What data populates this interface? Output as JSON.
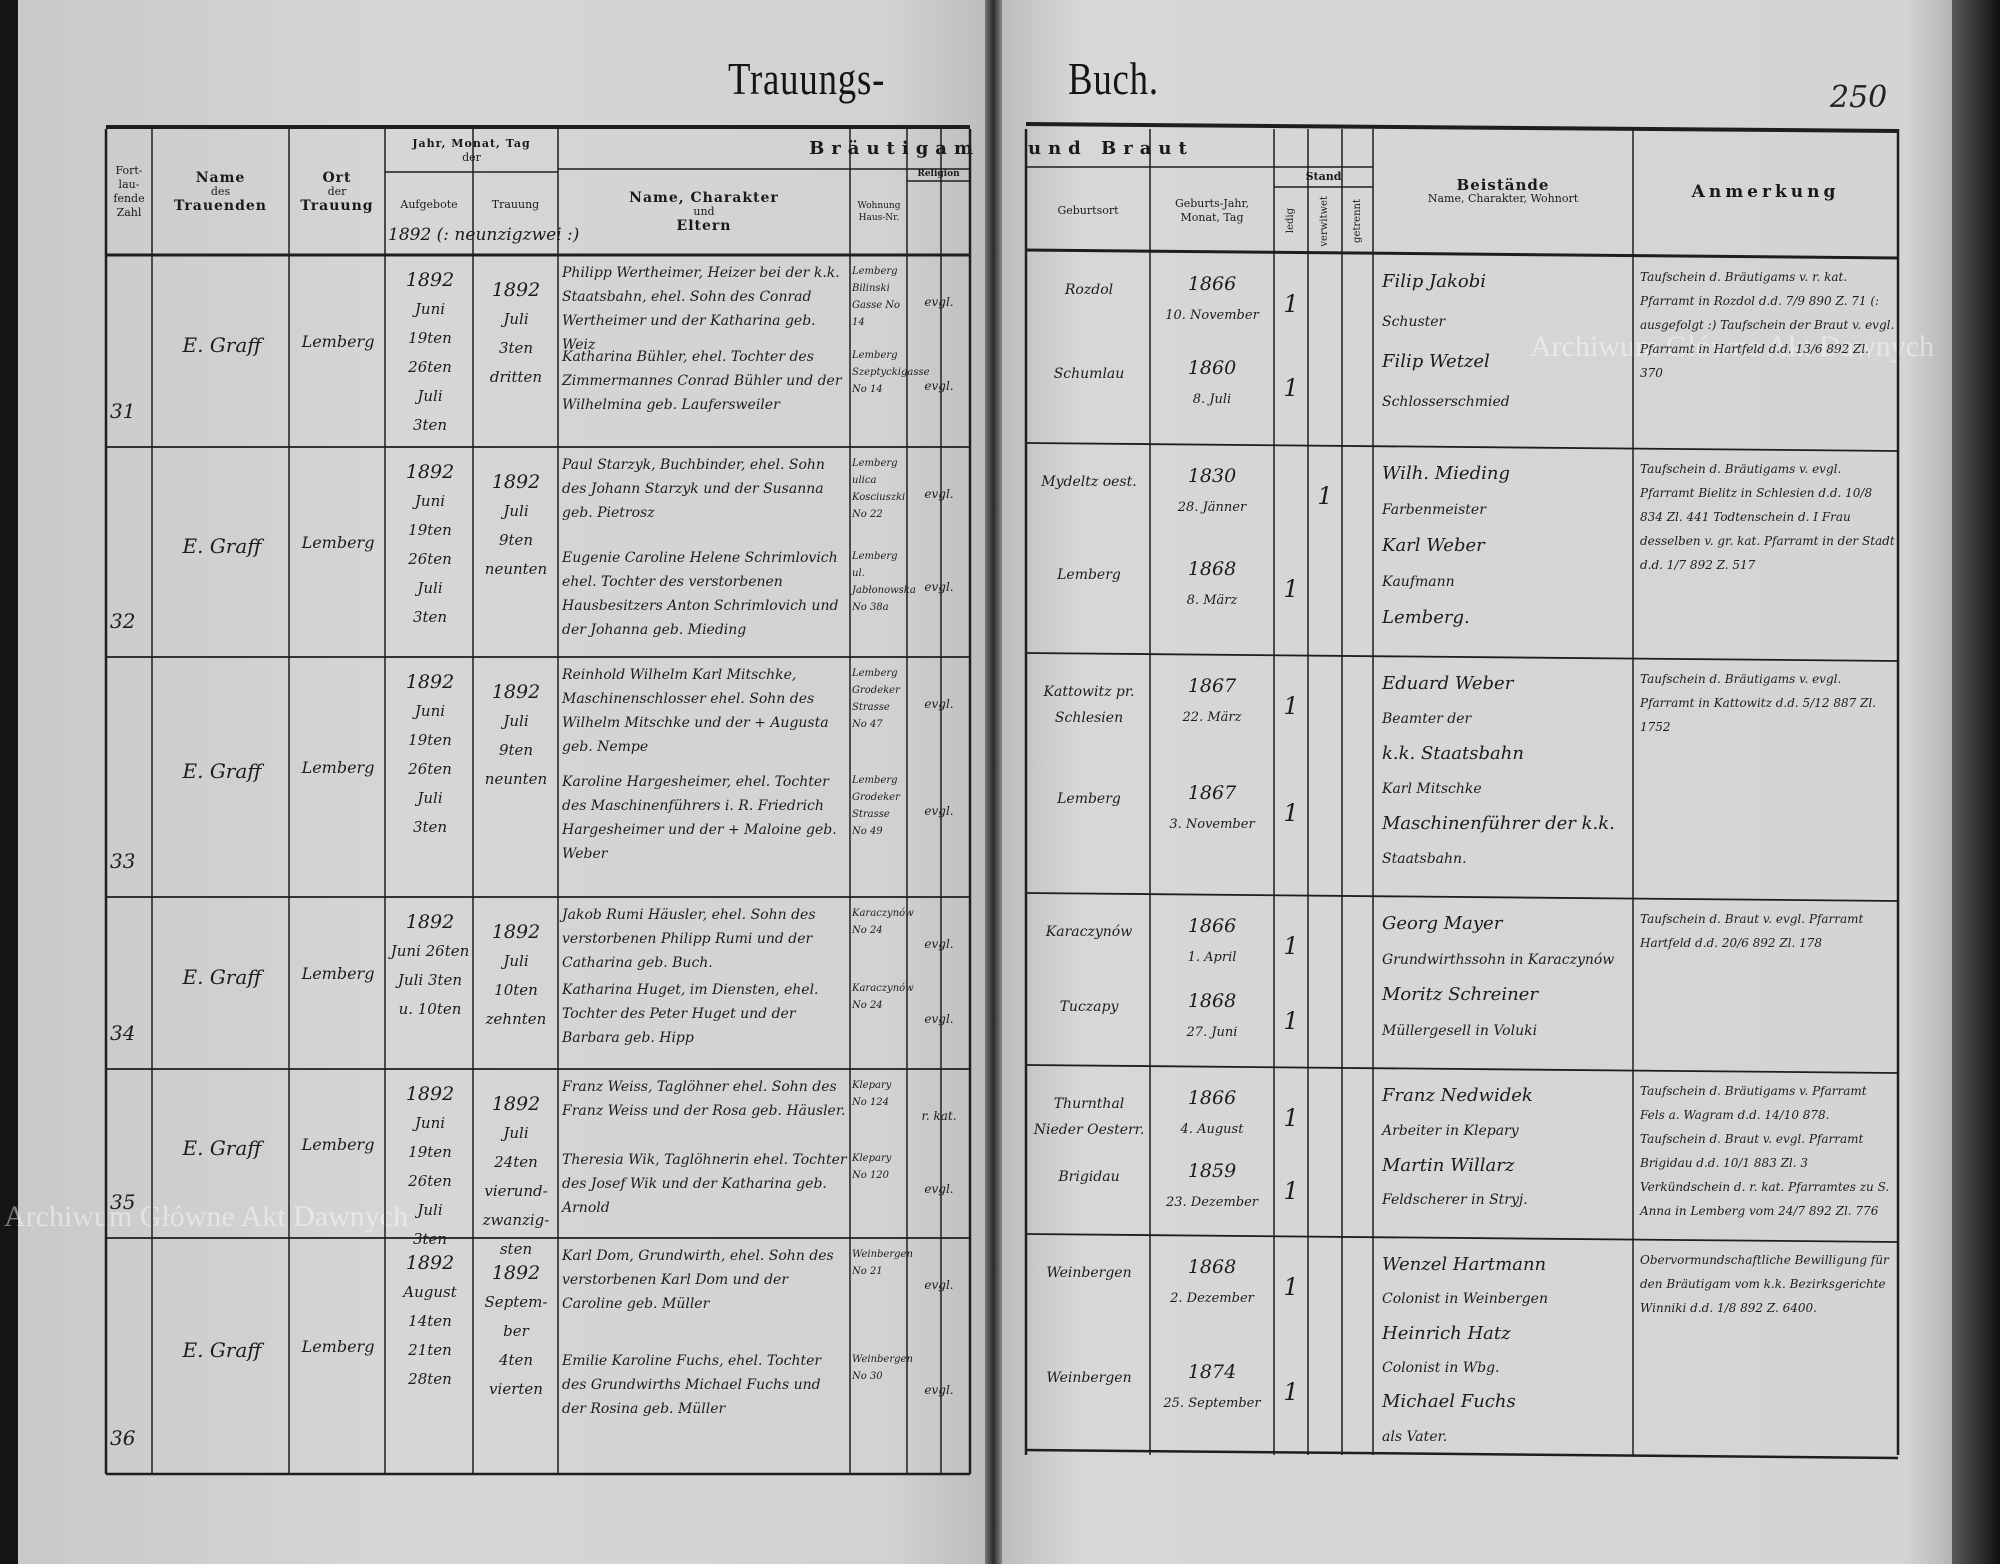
{
  "document": {
    "title_left": "Trauungs-",
    "title_right": "Buch.",
    "page_number": "250",
    "watermark": "Archiwum Główne Akt Dawnych"
  },
  "header": {
    "fortlaufende_zahl": "Fort-lau-fende Zahl",
    "name_des": "Name",
    "name_des_sub": "des",
    "trauenden": "Trauenden",
    "ort": "Ort",
    "ort_sub": "der",
    "trauung_place": "Trauung",
    "date_group": "Jahr, Monat, Tag",
    "date_group_sub": "der",
    "aufgebote": "Aufgebote",
    "trauung": "Trauung",
    "year_note": "1892 (: neunzigzwei :)",
    "braeutigam": "Bräutigam",
    "und_braut": "und Braut",
    "name_charakter": "Name, Charakter",
    "und": "und",
    "eltern": "Eltern",
    "wohnung": "Wohnung Haus-Nr.",
    "religion": "Religion",
    "geburtsort": "Geburtsort",
    "geburts_datum": "Geburts-Jahr, Monat, Tag",
    "stand": "Stand",
    "ledig": "ledig",
    "verwitwet": "verwitwet",
    "getrennt": "getrennt",
    "beistaende": "Beistände",
    "beistaende_sub": "Name, Charakter, Wohnort",
    "anmerkung": "Anmerkung"
  },
  "rows": [
    {
      "number": "31",
      "trauender": "E. Graff",
      "ort": "Lemberg",
      "aufgebote": [
        "1892",
        "Juni",
        "19ten",
        "26ten",
        "Juli",
        "3ten"
      ],
      "trauung": [
        "1892",
        "Juli",
        "3ten",
        "dritten"
      ],
      "groom": {
        "text": "Philipp Wertheimer, Heizer bei der k.k. Staatsbahn, ehel. Sohn des Conrad Wertheimer und der Katharina geb. Weiz",
        "wohnung": "Lemberg Bilinski Gasse No 14",
        "religion": "evgl.",
        "geburtsort": "Rozdol",
        "jahr": "1866",
        "tag": "10. November",
        "stand": "ledig"
      },
      "bride": {
        "text": "Katharina Bühler, ehel. Tochter des Zimmermannes Conrad Bühler und der Wilhelmina geb. Laufersweiler",
        "wohnung": "Lemberg Szeptyckigasse No 14",
        "religion": "evgl.",
        "geburtsort": "Schumlau",
        "jahr": "1860",
        "tag": "8. Juli",
        "stand": "ledig"
      },
      "beistaende": [
        "Filip Jakobi",
        "Schuster",
        "Filip Wetzel",
        "Schlosserschmied"
      ],
      "anmerkung": "Taufschein d. Bräutigams v. r. kat. Pfarramt in Rozdol d.d. 7/9 890 Z. 71 (: ausgefolgt :) Taufschein der Braut v. evgl. Pfarramt in Hartfeld d.d. 13/6 892 Zl. 370"
    },
    {
      "number": "32",
      "trauender": "E. Graff",
      "ort": "Lemberg",
      "aufgebote": [
        "1892",
        "Juni",
        "19ten",
        "26ten",
        "Juli",
        "3ten"
      ],
      "trauung": [
        "1892",
        "Juli",
        "9ten",
        "neunten"
      ],
      "groom": {
        "text": "Paul Starzyk, Buchbinder, ehel. Sohn des Johann Starzyk und der Susanna geb. Pietrosz",
        "wohnung": "Lemberg ulica Kosciuszki No 22",
        "religion": "evgl.",
        "geburtsort": "Mydeltz oest.",
        "jahr": "1830",
        "tag": "28. Jänner",
        "stand": "verwitwet"
      },
      "bride": {
        "text": "Eugenie Caroline Helene Schrimlovich ehel. Tochter des verstorbenen Hausbesitzers Anton Schrimlovich und der Johanna geb. Mieding",
        "wohnung": "Lemberg ul. Jabłonowska No 38a",
        "religion": "evgl.",
        "geburtsort": "Lemberg",
        "jahr": "1868",
        "tag": "8. März",
        "stand": "ledig"
      },
      "beistaende": [
        "Wilh. Mieding",
        "Farbenmeister",
        "Karl Weber",
        "Kaufmann",
        "Lemberg."
      ],
      "anmerkung": "Taufschein d. Bräutigams v. evgl. Pfarramt Bielitz in Schlesien d.d. 10/8 834 Zl. 441 Todtenschein d. I Frau desselben v. gr. kat. Pfarramt in der Stadt d.d. 1/7 892 Z. 517"
    },
    {
      "number": "33",
      "trauender": "E. Graff",
      "ort": "Lemberg",
      "aufgebote": [
        "1892",
        "Juni",
        "19ten",
        "26ten",
        "Juli",
        "3ten"
      ],
      "trauung": [
        "1892",
        "Juli",
        "9ten",
        "neunten"
      ],
      "groom": {
        "text": "Reinhold Wilhelm Karl Mitschke, Maschinenschlosser ehel. Sohn des Wilhelm Mitschke und der + Augusta geb. Nempe",
        "wohnung": "Lemberg Grodeker Strasse No 47",
        "religion": "evgl.",
        "geburtsort": "Kattowitz pr. Schlesien",
        "jahr": "1867",
        "tag": "22. März",
        "stand": "ledig"
      },
      "bride": {
        "text": "Karoline Hargesheimer, ehel. Tochter des Maschinenführers i. R. Friedrich Hargesheimer und der + Maloine geb. Weber",
        "wohnung": "Lemberg Grodeker Strasse No 49",
        "religion": "evgl.",
        "geburtsort": "Lemberg",
        "jahr": "1867",
        "tag": "3. November",
        "stand": "ledig"
      },
      "beistaende": [
        "Eduard Weber",
        "Beamter der",
        "k.k. Staatsbahn",
        "Karl Mitschke",
        "Maschinenführer der k.k.",
        "Staatsbahn."
      ],
      "anmerkung": "Taufschein d. Bräutigams v. evgl. Pfarramt in Kattowitz d.d. 5/12 887 Zl. 1752"
    },
    {
      "number": "34",
      "trauender": "E. Graff",
      "ort": "Lemberg",
      "aufgebote": [
        "1892",
        "Juni 26ten",
        "Juli 3ten",
        "u. 10ten"
      ],
      "trauung": [
        "1892",
        "Juli",
        "10ten",
        "zehnten"
      ],
      "groom": {
        "text": "Jakob Rumi Häusler, ehel. Sohn des verstorbenen Philipp Rumi und der Catharina geb. Buch.",
        "wohnung": "Karaczynów No 24",
        "religion": "evgl.",
        "geburtsort": "Karaczynów",
        "jahr": "1866",
        "tag": "1. April",
        "stand": "ledig"
      },
      "bride": {
        "text": "Katharina Huget, im Diensten, ehel. Tochter des Peter Huget und der Barbara geb. Hipp",
        "wohnung": "Karaczynów No 24",
        "religion": "evgl.",
        "geburtsort": "Tuczapy",
        "jahr": "1868",
        "tag": "27. Juni",
        "stand": "ledig"
      },
      "beistaende": [
        "Georg Mayer",
        "Grundwirthssohn in Karaczynów",
        "Moritz Schreiner",
        "Müllergesell in Voluki"
      ],
      "anmerkung": "Taufschein d. Braut v. evgl. Pfarramt Hartfeld d.d. 20/6 892 Zl. 178"
    },
    {
      "number": "35",
      "trauender": "E. Graff",
      "ort": "Lemberg",
      "aufgebote": [
        "1892",
        "Juni",
        "19ten",
        "26ten",
        "Juli",
        "3ten"
      ],
      "trauung": [
        "1892",
        "Juli",
        "24ten",
        "vierund-",
        "zwanzig-",
        "sten"
      ],
      "groom": {
        "text": "Franz Weiss, Taglöhner ehel. Sohn des Franz Weiss und der Rosa geb. Häusler.",
        "wohnung": "Klepary No 124",
        "religion": "r. kat.",
        "geburtsort": "Thurnthal Nieder Oesterr.",
        "jahr": "1866",
        "tag": "4. August",
        "stand": "ledig"
      },
      "bride": {
        "text": "Theresia Wik, Taglöhnerin ehel. Tochter des Josef Wik und der Katharina geb. Arnold",
        "wohnung": "Klepary No 120",
        "religion": "evgl.",
        "geburtsort": "Brigidau",
        "jahr": "1859",
        "tag": "23. Dezember",
        "stand": "ledig"
      },
      "beistaende": [
        "Franz Nedwidek",
        "Arbeiter in Klepary",
        "Martin Willarz",
        "Feldscherer in Stryj."
      ],
      "anmerkung": "Taufschein d. Bräutigams v. Pfarramt Fels a. Wagram d.d. 14/10 878. Taufschein d. Braut v. evgl. Pfarramt Brigidau d.d. 10/1 883 Zl. 3 Verkündschein d. r. kat. Pfarramtes zu S. Anna in Lemberg vom 24/7 892 Zl. 776"
    },
    {
      "number": "36",
      "trauender": "E. Graff",
      "ort": "Lemberg",
      "aufgebote": [
        "1892",
        "August",
        "14ten",
        "21ten",
        "28ten"
      ],
      "trauung": [
        "1892",
        "Septem-",
        "ber",
        "4ten",
        "vierten"
      ],
      "groom": {
        "text": "Karl Dom, Grundwirth, ehel. Sohn des verstorbenen Karl Dom und der Caroline geb. Müller",
        "wohnung": "Weinbergen No 21",
        "religion": "evgl.",
        "geburtsort": "Weinbergen",
        "jahr": "1868",
        "tag": "2. Dezember",
        "stand": "ledig"
      },
      "bride": {
        "text": "Emilie Karoline Fuchs, ehel. Tochter des Grundwirths Michael Fuchs und der Rosina geb. Müller",
        "wohnung": "Weinbergen No 30",
        "religion": "evgl.",
        "geburtsort": "Weinbergen",
        "jahr": "1874",
        "tag": "25. September",
        "stand": "ledig"
      },
      "beistaende": [
        "Wenzel Hartmann",
        "Colonist in Weinbergen",
        "Heinrich Hatz",
        "Colonist in Wbg.",
        "Michael Fuchs",
        "als Vater."
      ],
      "anmerkung": "Obervormundschaftliche Bewilligung für den Bräutigam vom k.k. Bezirksgerichte Winniki d.d. 1/8 892 Z. 6400."
    }
  ]
}
